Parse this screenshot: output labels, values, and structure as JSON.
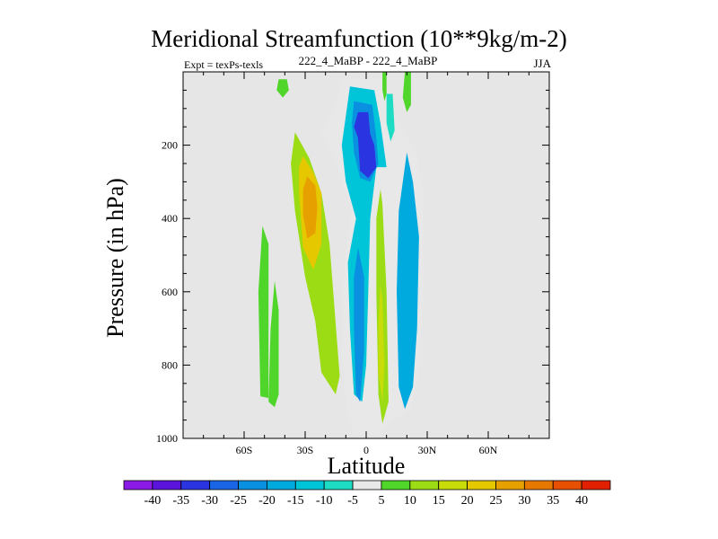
{
  "chart_data": {
    "type": "heatmap",
    "title": "Meridional Streamfunction (10**9kg/m-2)",
    "subtitle": "222_4_MaBP - 222_4_MaBP",
    "left_label": "Expt = texPs-texls",
    "right_label": "JJA",
    "xlabel": "Latitude",
    "ylabel": "Pressure (in hPa)",
    "x_ticks": [
      {
        "value": -60,
        "label": "60S"
      },
      {
        "value": -30,
        "label": "30S"
      },
      {
        "value": 0,
        "label": "0"
      },
      {
        "value": 30,
        "label": "30N"
      },
      {
        "value": 60,
        "label": "60N"
      }
    ],
    "y_ticks": [
      {
        "value": 200,
        "label": "200"
      },
      {
        "value": 400,
        "label": "400"
      },
      {
        "value": 600,
        "label": "600"
      },
      {
        "value": 800,
        "label": "800"
      },
      {
        "value": 1000,
        "label": "1000"
      }
    ],
    "xlim": [
      -90,
      90
    ],
    "ylim": [
      0,
      1000
    ],
    "y_inverted": true,
    "grid": false,
    "colorbar": {
      "levels": [
        "-40",
        "-35",
        "-30",
        "-25",
        "-20",
        "-15",
        "-10",
        "-5",
        "5",
        "10",
        "15",
        "20",
        "25",
        "30",
        "35",
        "40"
      ],
      "colors": [
        "#8c1ae6",
        "#5a14dc",
        "#2a34e0",
        "#1a64e6",
        "#0a90e0",
        "#00aade",
        "#00c4d8",
        "#1edcc4",
        "#e8e8e8",
        "#50d62a",
        "#9cdc14",
        "#c8dc0a",
        "#e6c800",
        "#e6a000",
        "#e67800",
        "#e65000",
        "#e02000"
      ]
    },
    "regions": [
      {
        "name": "southern-positive-cell",
        "value": 10,
        "points": [
          [
            -35,
            165
          ],
          [
            -28,
            235
          ],
          [
            -22,
            330
          ],
          [
            -18,
            470
          ],
          [
            -13,
            830
          ],
          [
            -15,
            880
          ],
          [
            -22,
            820
          ],
          [
            -25,
            680
          ],
          [
            -30,
            560
          ],
          [
            -35,
            380
          ],
          [
            -37,
            250
          ]
        ]
      },
      {
        "name": "southern-positive-core",
        "value": 20,
        "points": [
          [
            -31,
            230
          ],
          [
            -26,
            275
          ],
          [
            -22,
            330
          ],
          [
            -22,
            470
          ],
          [
            -26,
            540
          ],
          [
            -31,
            480
          ],
          [
            -33,
            330
          ],
          [
            -33,
            260
          ]
        ]
      },
      {
        "name": "southern-positive-max",
        "value": 25,
        "points": [
          [
            -29,
            285
          ],
          [
            -25,
            310
          ],
          [
            -24,
            370
          ],
          [
            -25,
            440
          ],
          [
            -29,
            455
          ],
          [
            -31,
            390
          ],
          [
            -31,
            320
          ]
        ]
      },
      {
        "name": "far-south-positive-left",
        "value": 5,
        "points": [
          [
            -51,
            420
          ],
          [
            -48,
            470
          ],
          [
            -48,
            890
          ],
          [
            -52,
            885
          ],
          [
            -53,
            600
          ]
        ]
      },
      {
        "name": "far-south-positive-right",
        "value": 5,
        "points": [
          [
            -45,
            570
          ],
          [
            -43,
            650
          ],
          [
            -43,
            880
          ],
          [
            -45,
            915
          ],
          [
            -48,
            900
          ],
          [
            -47,
            700
          ]
        ]
      },
      {
        "name": "south-polar-blob",
        "value": 5,
        "points": [
          [
            -43,
            20
          ],
          [
            -39,
            20
          ],
          [
            -38,
            50
          ],
          [
            -41,
            70
          ],
          [
            -44,
            50
          ]
        ]
      },
      {
        "name": "negative-outer",
        "value": -5,
        "points": [
          [
            -12,
            20
          ],
          [
            8,
            20
          ],
          [
            10,
            80
          ],
          [
            16,
            140
          ],
          [
            24,
            210
          ],
          [
            28,
            320
          ],
          [
            28,
            600
          ],
          [
            26,
            820
          ],
          [
            22,
            920
          ],
          [
            12,
            955
          ],
          [
            6,
            990
          ],
          [
            -6,
            990
          ],
          [
            -9,
            940
          ],
          [
            -12,
            780
          ],
          [
            -11,
            560
          ],
          [
            -9,
            460
          ],
          [
            -7,
            380
          ],
          [
            -14,
            260
          ],
          [
            -22,
            170
          ],
          [
            -16,
            100
          ]
        ]
      },
      {
        "name": "negative-inner",
        "value": -15,
        "points": [
          [
            -8,
            40
          ],
          [
            4,
            50
          ],
          [
            7,
            140
          ],
          [
            10,
            260
          ],
          [
            5,
            260
          ],
          [
            2,
            400
          ],
          [
            1,
            600
          ],
          [
            0,
            800
          ],
          [
            -2,
            900
          ],
          [
            -6,
            880
          ],
          [
            -8,
            700
          ],
          [
            -9,
            520
          ],
          [
            -5,
            400
          ],
          [
            -10,
            300
          ],
          [
            -12,
            200
          ]
        ]
      },
      {
        "name": "negative-core-lower",
        "value": -25,
        "points": [
          [
            -4,
            480
          ],
          [
            -1,
            560
          ],
          [
            -1,
            760
          ],
          [
            -3,
            900
          ],
          [
            -5,
            880
          ],
          [
            -6,
            700
          ],
          [
            -6,
            560
          ]
        ]
      },
      {
        "name": "negative-upper",
        "value": -25,
        "points": [
          [
            -6,
            80
          ],
          [
            3,
            90
          ],
          [
            5,
            180
          ],
          [
            6,
            250
          ],
          [
            2,
            300
          ],
          [
            -3,
            290
          ],
          [
            -6,
            220
          ],
          [
            -7,
            140
          ]
        ]
      },
      {
        "name": "negative-upper-core",
        "value": -35,
        "points": [
          [
            -4,
            110
          ],
          [
            1,
            110
          ],
          [
            2,
            170
          ],
          [
            4,
            200
          ],
          [
            5,
            260
          ],
          [
            1,
            290
          ],
          [
            -3,
            270
          ],
          [
            -4,
            180
          ],
          [
            -6,
            150
          ]
        ]
      },
      {
        "name": "nh-negative-column",
        "value": -20,
        "points": [
          [
            20,
            220
          ],
          [
            23,
            300
          ],
          [
            26,
            450
          ],
          [
            25,
            700
          ],
          [
            23,
            860
          ],
          [
            19,
            920
          ],
          [
            16,
            860
          ],
          [
            15,
            600
          ],
          [
            16,
            380
          ]
        ]
      },
      {
        "name": "equatorial-positive-strip",
        "value": 10,
        "points": [
          [
            7,
            320
          ],
          [
            8,
            360
          ],
          [
            10,
            600
          ],
          [
            11,
            900
          ],
          [
            8,
            960
          ],
          [
            6,
            880
          ],
          [
            5,
            600
          ],
          [
            5,
            400
          ]
        ]
      },
      {
        "name": "equatorial-positive-core",
        "value": 15,
        "points": [
          [
            7,
            580
          ],
          [
            8,
            620
          ],
          [
            9,
            800
          ],
          [
            8,
            900
          ],
          [
            6,
            820
          ],
          [
            6,
            680
          ]
        ]
      },
      {
        "name": "nh-positive-top-a",
        "value": 5,
        "points": [
          [
            8,
            0
          ],
          [
            10,
            0
          ],
          [
            10,
            60
          ],
          [
            9,
            80
          ],
          [
            8,
            50
          ]
        ]
      },
      {
        "name": "nh-positive-top-b",
        "value": 5,
        "points": [
          [
            19,
            0
          ],
          [
            22,
            0
          ],
          [
            22,
            90
          ],
          [
            20,
            110
          ],
          [
            18,
            70
          ]
        ]
      },
      {
        "name": "nh-negative-top",
        "value": -10,
        "points": [
          [
            10,
            60
          ],
          [
            13,
            60
          ],
          [
            14,
            160
          ],
          [
            12,
            190
          ],
          [
            10,
            140
          ]
        ]
      }
    ]
  }
}
